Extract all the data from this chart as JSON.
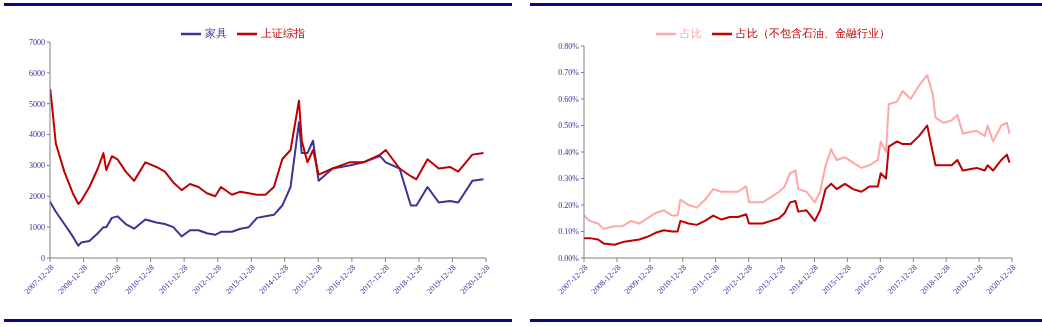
{
  "chart_data": [
    {
      "type": "line",
      "legend": "top",
      "marker": "none",
      "grid": false,
      "x": [
        "2007-12-28",
        "2008-01",
        "2008-03",
        "2008-06",
        "2008-09",
        "2008-11",
        "2008-12",
        "2009-03",
        "2009-06",
        "2009-08",
        "2009-09",
        "2009-11",
        "2010-01",
        "2010-04",
        "2010-07",
        "2010-11",
        "2011-03",
        "2011-06",
        "2011-09",
        "2011-12",
        "2012-03",
        "2012-06",
        "2012-09",
        "2012-12",
        "2013-02",
        "2013-06",
        "2013-09",
        "2013-12",
        "2014-03",
        "2014-06",
        "2014-09",
        "2014-12",
        "2015-03",
        "2015-06",
        "2015-07",
        "2015-09",
        "2015-11",
        "2016-01",
        "2016-06",
        "2016-12",
        "2017-05",
        "2017-11",
        "2018-01",
        "2018-06",
        "2018-10",
        "2018-12",
        "2019-04",
        "2019-08",
        "2019-12",
        "2020-03",
        "2020-08",
        "2020-12"
      ],
      "series": [
        {
          "name": "家具",
          "color": "#3f3297",
          "values": [
            1850,
            1800,
            1500,
            1100,
            700,
            400,
            500,
            550,
            800,
            1000,
            1000,
            1300,
            1350,
            1100,
            950,
            1250,
            1150,
            1100,
            1000,
            700,
            900,
            900,
            800,
            750,
            850,
            850,
            950,
            1000,
            1300,
            1350,
            1400,
            1700,
            2300,
            4400,
            3400,
            3400,
            3800,
            2500,
            2900,
            3000,
            3100,
            3300,
            3100,
            2900,
            1700,
            1700,
            2300,
            1800,
            1850,
            1800,
            2500,
            2550
          ]
        },
        {
          "name": "上证综指",
          "color": "#c00000",
          "values": [
            5260,
            5450,
            3700,
            2800,
            2100,
            1750,
            1850,
            2300,
            2900,
            3400,
            2850,
            3300,
            3200,
            2800,
            2500,
            3100,
            2950,
            2800,
            2450,
            2200,
            2400,
            2300,
            2100,
            2000,
            2300,
            2050,
            2150,
            2100,
            2050,
            2050,
            2300,
            3200,
            3500,
            5100,
            3800,
            3100,
            3500,
            2700,
            2900,
            3100,
            3100,
            3350,
            3500,
            2900,
            2650,
            2550,
            3200,
            2900,
            2950,
            2800,
            3350,
            3400
          ]
        }
      ],
      "xlim": [
        "2007-12-28",
        "2020-12-28"
      ],
      "xticks": [
        "2007-12-28",
        "2008-12-28",
        "2009-12-28",
        "2010-12-28",
        "2011-12-28",
        "2012-12-28",
        "2013-12-28",
        "2014-12-28",
        "2015-12-28",
        "2016-12-28",
        "2017-12-28",
        "2018-12-28",
        "2019-12-28",
        "2020-12-28"
      ],
      "ylim": [
        0,
        7000
      ],
      "yticks": [
        0,
        1000,
        2000,
        3000,
        4000,
        5000,
        6000,
        7000
      ]
    },
    {
      "type": "line",
      "legend": "top",
      "marker": "none",
      "grid": false,
      "x": [
        "2007-12-28",
        "2008-03",
        "2008-06",
        "2008-08",
        "2008-12",
        "2009-03",
        "2009-06",
        "2009-09",
        "2009-12",
        "2010-03",
        "2010-06",
        "2010-09",
        "2010-11",
        "2010-12",
        "2011-03",
        "2011-06",
        "2011-09",
        "2011-12",
        "2012-03",
        "2012-06",
        "2012-09",
        "2012-12",
        "2013-01",
        "2013-06",
        "2013-09",
        "2013-12",
        "2014-02",
        "2014-04",
        "2014-06",
        "2014-07",
        "2014-10",
        "2015-01",
        "2015-03",
        "2015-05",
        "2015-07",
        "2015-09",
        "2015-12",
        "2016-03",
        "2016-06",
        "2016-09",
        "2016-12",
        "2017-01",
        "2017-03",
        "2017-04",
        "2017-07",
        "2017-09",
        "2017-12",
        "2018-03",
        "2018-06",
        "2018-08",
        "2018-09",
        "2018-12",
        "2019-03",
        "2019-05",
        "2019-07",
        "2019-12",
        "2020-03",
        "2020-04",
        "2020-06",
        "2020-09",
        "2020-11",
        "2020-12"
      ],
      "series": [
        {
          "name": "占比",
          "color": "#ffa6a6",
          "values": [
            0.16,
            0.14,
            0.13,
            0.11,
            0.12,
            0.12,
            0.14,
            0.13,
            0.15,
            0.17,
            0.18,
            0.16,
            0.16,
            0.22,
            0.2,
            0.19,
            0.22,
            0.26,
            0.25,
            0.25,
            0.25,
            0.27,
            0.21,
            0.21,
            0.23,
            0.25,
            0.27,
            0.32,
            0.33,
            0.26,
            0.25,
            0.21,
            0.25,
            0.35,
            0.41,
            0.37,
            0.38,
            0.36,
            0.34,
            0.35,
            0.37,
            0.44,
            0.4,
            0.58,
            0.59,
            0.63,
            0.6,
            0.65,
            0.69,
            0.62,
            0.53,
            0.51,
            0.52,
            0.54,
            0.47,
            0.48,
            0.46,
            0.5,
            0.44,
            0.5,
            0.51,
            0.47
          ]
        },
        {
          "name": "占比（不包含石油、金融行业）",
          "color": "#c00000",
          "values": [
            0.075,
            0.075,
            0.07,
            0.055,
            0.05,
            0.06,
            0.065,
            0.07,
            0.08,
            0.095,
            0.105,
            0.1,
            0.1,
            0.14,
            0.13,
            0.125,
            0.14,
            0.16,
            0.145,
            0.155,
            0.155,
            0.165,
            0.13,
            0.13,
            0.14,
            0.15,
            0.17,
            0.21,
            0.215,
            0.175,
            0.18,
            0.14,
            0.18,
            0.26,
            0.28,
            0.26,
            0.28,
            0.26,
            0.25,
            0.27,
            0.27,
            0.32,
            0.3,
            0.42,
            0.44,
            0.43,
            0.43,
            0.46,
            0.5,
            0.4,
            0.35,
            0.35,
            0.35,
            0.37,
            0.33,
            0.34,
            0.33,
            0.35,
            0.33,
            0.37,
            0.39,
            0.36
          ]
        }
      ],
      "xlim": [
        "2007-12-28",
        "2020-12-28"
      ],
      "xticks": [
        "2007-12-28",
        "2008-12-28",
        "2009-12-28",
        "2010-12-28",
        "2011-12-28",
        "2012-12-28",
        "2013-12-28",
        "2014-12-28",
        "2015-12-28",
        "2016-12-28",
        "2017-12-28",
        "2018-12-28",
        "2019-12-28",
        "2020-12-28"
      ],
      "ylim": [
        0,
        0.8
      ],
      "yticks": [
        {
          "value": 0,
          "label": "0.00%"
        },
        {
          "value": 0.1,
          "label": "0.10%"
        },
        {
          "value": 0.2,
          "label": "0.20%"
        },
        {
          "value": 0.3,
          "label": "0.30%"
        },
        {
          "value": 0.4,
          "label": "0.40%"
        },
        {
          "value": 0.5,
          "label": "0.50%"
        },
        {
          "value": 0.6,
          "label": "0.60%"
        },
        {
          "value": 0.7,
          "label": "0.70%"
        },
        {
          "value": 0.8,
          "label": "0.80%"
        }
      ]
    }
  ]
}
